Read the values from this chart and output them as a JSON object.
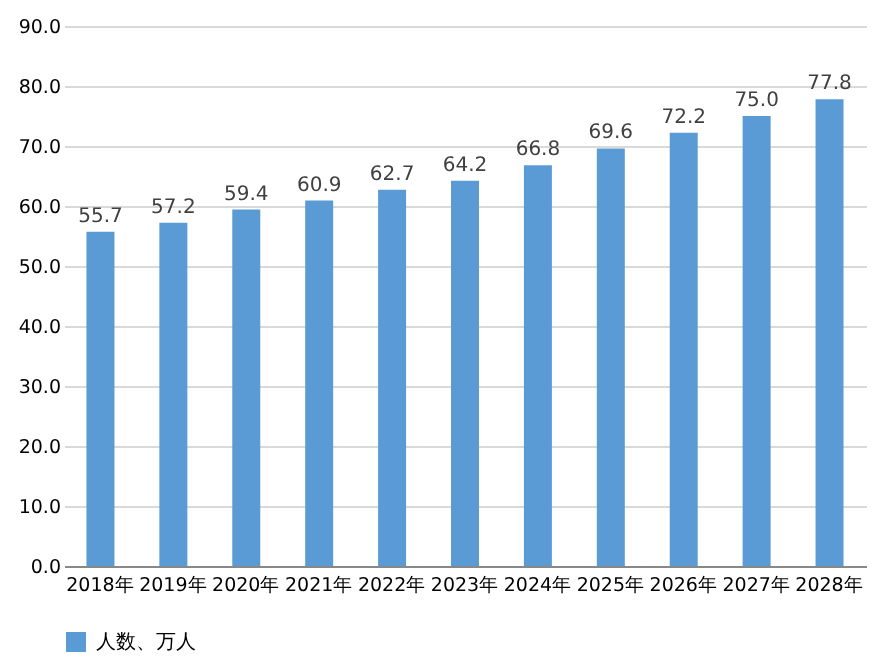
{
  "chart_data": {
    "type": "bar",
    "categories": [
      "2018年",
      "2019年",
      "2020年",
      "2021年",
      "2022年",
      "2023年",
      "2024年",
      "2025年",
      "2026年",
      "2027年",
      "2028年"
    ],
    "series": [
      {
        "name": "人数、万人",
        "color": "#5b9bd5",
        "values": [
          55.7,
          57.2,
          59.4,
          60.9,
          62.7,
          64.2,
          66.8,
          69.6,
          72.2,
          75.0,
          77.8
        ],
        "value_labels": [
          "55.7",
          "57.2",
          "59.4",
          "60.9",
          "62.7",
          "64.2",
          "66.8",
          "69.6",
          "72.2",
          "75.0",
          "77.8"
        ]
      }
    ],
    "ylim": [
      0,
      90
    ],
    "yticks": [
      {
        "value": 0,
        "label": "0.0"
      },
      {
        "value": 10,
        "label": "10.0"
      },
      {
        "value": 20,
        "label": "20.0"
      },
      {
        "value": 30,
        "label": "30.0"
      },
      {
        "value": 40,
        "label": "40.0"
      },
      {
        "value": 50,
        "label": "50.0"
      },
      {
        "value": 60,
        "label": "60.0"
      },
      {
        "value": 70,
        "label": "70.0"
      },
      {
        "value": 80,
        "label": "80.0"
      },
      {
        "value": 90,
        "label": "90.0"
      }
    ],
    "grid": "y",
    "legend": "bottom"
  }
}
